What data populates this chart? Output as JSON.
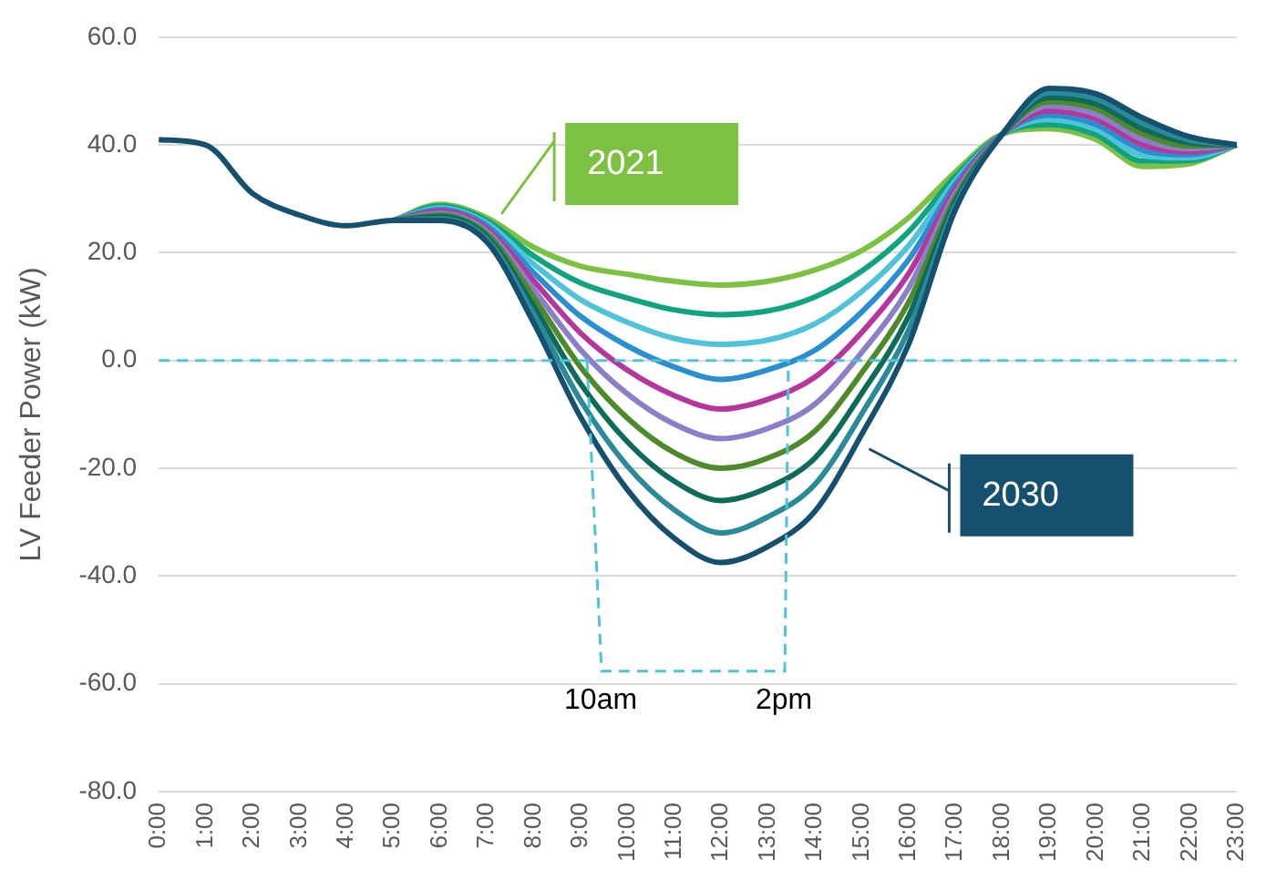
{
  "chart_data": {
    "type": "line",
    "ylabel": "LV Feeder Power (kW)",
    "categories": [
      "0:00",
      "1:00",
      "2:00",
      "3:00",
      "4:00",
      "5:00",
      "6:00",
      "7:00",
      "8:00",
      "9:00",
      "10:00",
      "11:00",
      "12:00",
      "13:00",
      "14:00",
      "15:00",
      "16:00",
      "17:00",
      "18:00",
      "19:00",
      "20:00",
      "21:00",
      "22:00",
      "23:00"
    ],
    "ylim": [
      -80,
      60
    ],
    "yticks": [
      {
        "value": -80,
        "label": "-80.0"
      },
      {
        "value": -60,
        "label": "-60.0"
      },
      {
        "value": -40,
        "label": "-40.0"
      },
      {
        "value": -20,
        "label": "-20.0"
      },
      {
        "value": 0,
        "label": "0.0"
      },
      {
        "value": 20,
        "label": "20.0"
      },
      {
        "value": 40,
        "label": "40.0"
      },
      {
        "value": 60,
        "label": "60.0"
      }
    ],
    "grid": "y",
    "legend": "top",
    "marker": "none",
    "line_style": "solid",
    "series": [
      {
        "name": "2021",
        "color": "#7dc142",
        "values": [
          null,
          null,
          null,
          null,
          null,
          26,
          29,
          26.5,
          21,
          17.5,
          16,
          14.7,
          14,
          14.7,
          16.8,
          20.4,
          26.5,
          35,
          42,
          43,
          41,
          36,
          36.5,
          40
        ]
      },
      {
        "color": "#0fa37f",
        "values": [
          null,
          null,
          null,
          null,
          null,
          26,
          28.7,
          26,
          19.4,
          14.4,
          11.6,
          9.4,
          8.5,
          9.2,
          11.8,
          16.6,
          23.9,
          34.2,
          42,
          43.8,
          41.9,
          37,
          37.1,
          40
        ]
      },
      {
        "color": "#4fc3d9",
        "values": [
          null,
          null,
          null,
          null,
          null,
          26,
          28.3,
          25.5,
          17.9,
          11.3,
          7.1,
          4.1,
          3,
          3.8,
          6.8,
          12.8,
          21.3,
          33.4,
          42,
          44.7,
          42.9,
          38,
          37.6,
          40
        ]
      },
      {
        "color": "#2a8fd0",
        "values": [
          null,
          null,
          null,
          null,
          null,
          26,
          28,
          25,
          16.3,
          8.2,
          2.7,
          -1.2,
          -3.5,
          -1.7,
          1.9,
          9,
          18.7,
          32.7,
          42,
          45.5,
          43.8,
          39,
          38.2,
          40
        ]
      },
      {
        "color": "#b6379c",
        "values": [
          null,
          null,
          null,
          null,
          null,
          26,
          27.7,
          24.5,
          14.8,
          5.1,
          -1.8,
          -6.5,
          -9,
          -7.2,
          -3.1,
          5.2,
          16.1,
          31.9,
          42,
          46.3,
          44.8,
          40,
          38.7,
          40
        ]
      },
      {
        "color": "#8a7fc8",
        "values": [
          null,
          null,
          null,
          null,
          null,
          26,
          27.3,
          24,
          13.2,
          2,
          -6.2,
          -11.8,
          -14.5,
          -12.6,
          -8.1,
          1.5,
          13.4,
          31.1,
          42,
          47.2,
          45.7,
          41,
          39.3,
          40
        ]
      },
      {
        "color": "#4f8a2a",
        "values": [
          null,
          null,
          null,
          null,
          null,
          26,
          27,
          23.5,
          11.7,
          -1.2,
          -10.7,
          -17.1,
          -20,
          -18.1,
          -13.1,
          -2.3,
          10.8,
          30.3,
          42,
          48,
          46.7,
          42,
          39.8,
          40
        ]
      },
      {
        "color": "#0e6b5a",
        "values": [
          null,
          null,
          null,
          null,
          null,
          26,
          26.7,
          23,
          10.1,
          -4.3,
          -15.1,
          -22.4,
          -26,
          -23.6,
          -18.1,
          -6.1,
          8.2,
          29.6,
          42,
          48.8,
          47.6,
          43,
          40.4,
          40
        ]
      },
      {
        "color": "#2a8a9a",
        "values": [
          null,
          null,
          null,
          null,
          null,
          26,
          26.3,
          22.5,
          8.6,
          -7.4,
          -19.6,
          -27.7,
          -32,
          -29,
          -23,
          -9.9,
          5.6,
          28.8,
          42,
          49.7,
          48.6,
          44,
          40.9,
          40
        ]
      },
      {
        "name": "2030",
        "color": "#15506e",
        "values": [
          41,
          40,
          31,
          27,
          25,
          26,
          26,
          22,
          7,
          -10.5,
          -24,
          -33,
          -37.5,
          -34.5,
          -28,
          -13.7,
          3,
          28,
          42,
          50.5,
          49.5,
          45,
          41.5,
          40
        ]
      }
    ],
    "ref_lines": [
      {
        "axis": "y",
        "value": 0,
        "color": "#4fc3d9",
        "line_style": "dashed"
      }
    ],
    "annotations": [
      "10am",
      "2pm"
    ]
  }
}
